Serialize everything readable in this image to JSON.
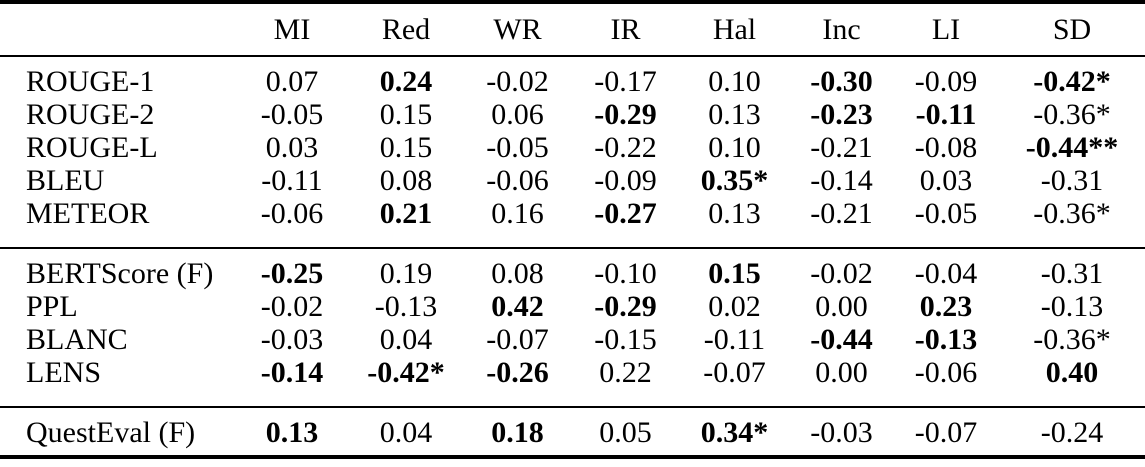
{
  "table": {
    "corner": "",
    "columns": [
      "MI",
      "Red",
      "WR",
      "IR",
      "Hal",
      "Inc",
      "LI",
      "SD"
    ],
    "sections": [
      {
        "name": "overlap-metrics",
        "rows": [
          {
            "label": "ROUGE-1",
            "cells": [
              {
                "v": "0.07"
              },
              {
                "v": "0.24",
                "b": true
              },
              {
                "v": "-0.02"
              },
              {
                "v": "-0.17"
              },
              {
                "v": "0.10"
              },
              {
                "v": "-0.30",
                "b": true
              },
              {
                "v": "-0.09"
              },
              {
                "v": "-0.42*",
                "b": true
              }
            ]
          },
          {
            "label": "ROUGE-2",
            "cells": [
              {
                "v": "-0.05"
              },
              {
                "v": "0.15"
              },
              {
                "v": "0.06"
              },
              {
                "v": "-0.29",
                "b": true
              },
              {
                "v": "0.13"
              },
              {
                "v": "-0.23",
                "b": true
              },
              {
                "v": "-0.11",
                "b": true
              },
              {
                "v": "-0.36*"
              }
            ]
          },
          {
            "label": "ROUGE-L",
            "cells": [
              {
                "v": "0.03"
              },
              {
                "v": "0.15"
              },
              {
                "v": "-0.05"
              },
              {
                "v": "-0.22"
              },
              {
                "v": "0.10"
              },
              {
                "v": "-0.21"
              },
              {
                "v": "-0.08"
              },
              {
                "v": "-0.44**",
                "b": true
              }
            ]
          },
          {
            "label": "BLEU",
            "cells": [
              {
                "v": "-0.11"
              },
              {
                "v": "0.08"
              },
              {
                "v": "-0.06"
              },
              {
                "v": "-0.09"
              },
              {
                "v": "0.35*",
                "b": true
              },
              {
                "v": "-0.14"
              },
              {
                "v": "0.03"
              },
              {
                "v": "-0.31"
              }
            ]
          },
          {
            "label": "METEOR",
            "cells": [
              {
                "v": "-0.06"
              },
              {
                "v": "0.21",
                "b": true
              },
              {
                "v": "0.16"
              },
              {
                "v": "-0.27",
                "b": true
              },
              {
                "v": "0.13"
              },
              {
                "v": "-0.21"
              },
              {
                "v": "-0.05"
              },
              {
                "v": "-0.36*"
              }
            ]
          }
        ]
      },
      {
        "name": "model-based-metrics",
        "rows": [
          {
            "label": "BERTScore (F)",
            "cells": [
              {
                "v": "-0.25",
                "b": true
              },
              {
                "v": "0.19"
              },
              {
                "v": "0.08"
              },
              {
                "v": "-0.10"
              },
              {
                "v": "0.15",
                "b": true
              },
              {
                "v": "-0.02"
              },
              {
                "v": "-0.04"
              },
              {
                "v": "-0.31"
              }
            ]
          },
          {
            "label": "PPL",
            "cells": [
              {
                "v": "-0.02"
              },
              {
                "v": "-0.13"
              },
              {
                "v": "0.42",
                "b": true
              },
              {
                "v": "-0.29",
                "b": true
              },
              {
                "v": "0.02"
              },
              {
                "v": "0.00"
              },
              {
                "v": "0.23",
                "b": true
              },
              {
                "v": "-0.13"
              }
            ]
          },
          {
            "label": "BLANC",
            "cells": [
              {
                "v": "-0.03"
              },
              {
                "v": "0.04"
              },
              {
                "v": "-0.07"
              },
              {
                "v": "-0.15"
              },
              {
                "v": "-0.11"
              },
              {
                "v": "-0.44",
                "b": true
              },
              {
                "v": "-0.13",
                "b": true
              },
              {
                "v": "-0.36*"
              }
            ]
          },
          {
            "label": "LENS",
            "cells": [
              {
                "v": "-0.14",
                "b": true
              },
              {
                "v": "-0.42*",
                "b": true
              },
              {
                "v": "-0.26",
                "b": true
              },
              {
                "v": "0.22"
              },
              {
                "v": "-0.07"
              },
              {
                "v": "0.00"
              },
              {
                "v": "-0.06"
              },
              {
                "v": "0.40",
                "b": true
              }
            ]
          }
        ]
      },
      {
        "name": "qa-metrics",
        "rows": [
          {
            "label": "QuestEval (F)",
            "cells": [
              {
                "v": "0.13",
                "b": true
              },
              {
                "v": "0.04"
              },
              {
                "v": "0.18",
                "b": true
              },
              {
                "v": "0.05"
              },
              {
                "v": "0.34*",
                "b": true
              },
              {
                "v": "-0.03"
              },
              {
                "v": "-0.07"
              },
              {
                "v": "-0.24"
              }
            ]
          }
        ]
      }
    ]
  }
}
